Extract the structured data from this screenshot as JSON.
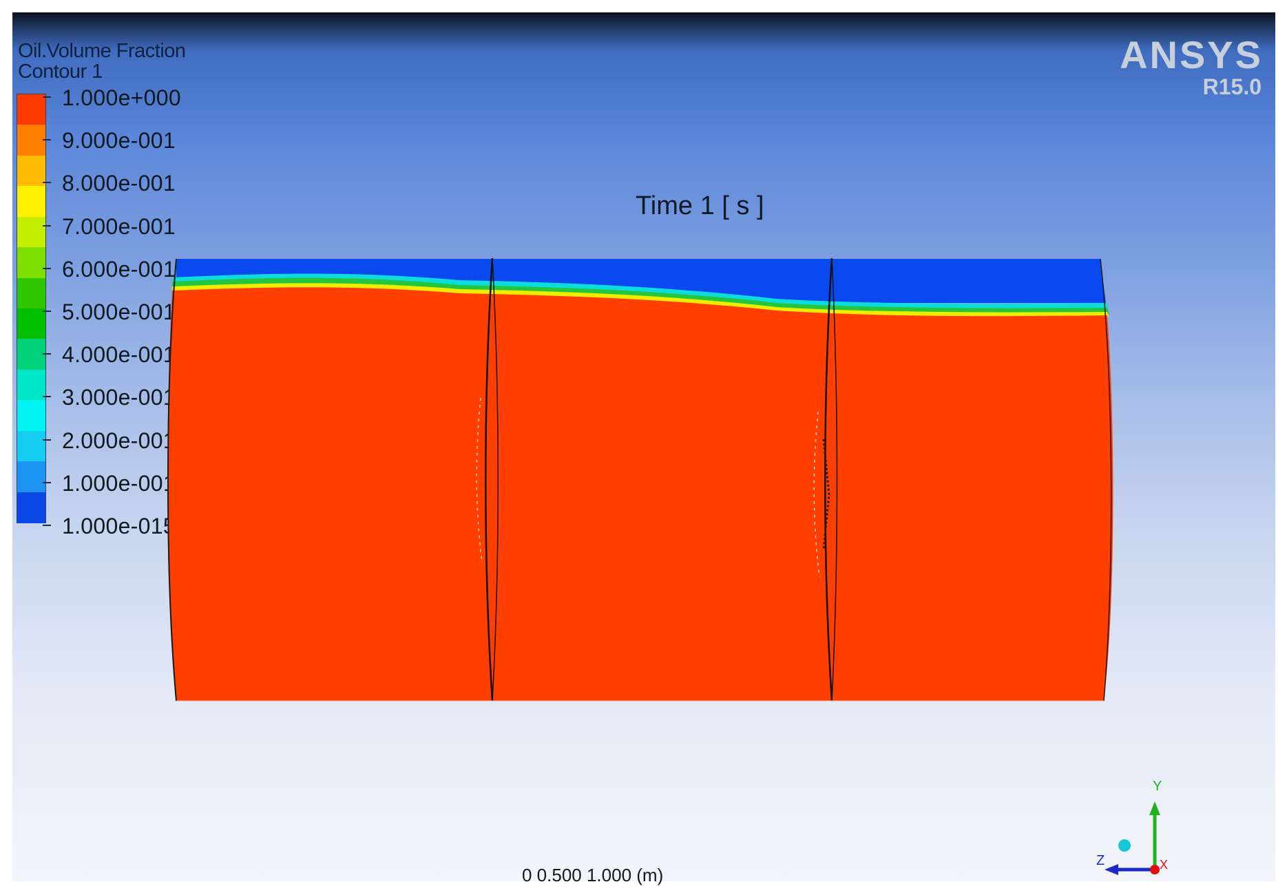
{
  "legend": {
    "variable": "Oil.Volume Fraction",
    "contour": "Contour 1",
    "band_colors": [
      "#ff3a00",
      "#ff7e00",
      "#ffbc00",
      "#fff000",
      "#c2ef00",
      "#7fdf00",
      "#2fc800",
      "#00c000",
      "#00d27c",
      "#00e6c8",
      "#00f4f4",
      "#16ccf0",
      "#1b94f2",
      "#0b46e6"
    ],
    "ticks": [
      "1.000e+000",
      "9.000e-001",
      "8.000e-001",
      "7.000e-001",
      "6.000e-001",
      "5.000e-001",
      "4.000e-001",
      "3.000e-001",
      "2.000e-001",
      "1.000e-001",
      "1.000e-015"
    ]
  },
  "brand": {
    "name": "ANSYS",
    "version": "R15.0"
  },
  "time_label": "Time 1 [ s ]",
  "field_colors": {
    "oil": "#ff3e00",
    "gas": "#0a49f0",
    "interface_cyan": "#0ddcdc",
    "interface_green": "#24c640",
    "interface_yellow": "#f0ec00",
    "outline": "#1a1a1a"
  },
  "triad": {
    "x_label": "X",
    "y_label": "Y",
    "z_label": "Z",
    "x_color": "#e01010",
    "y_color": "#20b020",
    "z_color": "#1c28c8",
    "dot_color": "#18c8d8"
  },
  "footer_caption": "0    0.500    1.000 (m)"
}
